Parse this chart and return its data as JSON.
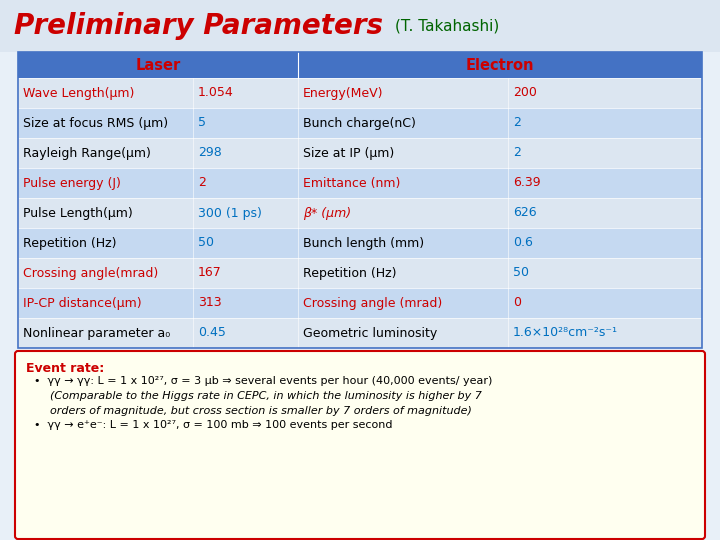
{
  "title": "Preliminary Parameters",
  "subtitle": "(T. Takahashi)",
  "outer_bg": "#e8f0f8",
  "header_bg": "#4472c4",
  "red_text": "#cc0000",
  "blue_text": "#0070c0",
  "green_text": "#006400",
  "black_text": "#000000",
  "row_colors": [
    "#dce6f1",
    "#c5d9f1",
    "#dce6f1",
    "#c5d9f1",
    "#dce6f1",
    "#c5d9f1",
    "#dce6f1",
    "#c5d9f1",
    "#dce6f1"
  ],
  "red_rows": [
    0,
    3,
    6,
    7
  ],
  "table_rows": [
    {
      "col1": "Wave Length(μm)",
      "col2": "1.054",
      "col3": "Energy(MeV)",
      "col4": "200"
    },
    {
      "col1": "Size at focus RMS (μm)",
      "col2": "5",
      "col3": "Bunch charge(nC)",
      "col4": "2"
    },
    {
      "col1": "Rayleigh Range(μm)",
      "col2": "298",
      "col3": "Size at IP (μm)",
      "col4": "2"
    },
    {
      "col1": "Pulse energy (J)",
      "col2": "2",
      "col3": "Emittance (nm)",
      "col4": "6.39"
    },
    {
      "col1": "Pulse Length(μm)",
      "col2": "300 (1 ps)",
      "col3": "β* (μm)",
      "col4": "626"
    },
    {
      "col1": "Repetition (Hz)",
      "col2": "50",
      "col3": "Bunch length (mm)",
      "col4": "0.6"
    },
    {
      "col1": "Crossing angle(mrad)",
      "col2": "167",
      "col3": "Repetition (Hz)",
      "col4": "50"
    },
    {
      "col1": "IP-CP distance(μm)",
      "col2": "313",
      "col3": "Crossing angle (mrad)",
      "col4": "0"
    },
    {
      "col1": "Nonlinear parameter a₀",
      "col2": "0.45",
      "col3": "Geometric luminosity",
      "col4": "1.6×10²⁸cm⁻²s⁻¹"
    }
  ],
  "event_box_bg": "#fffff0",
  "event_box_border": "#cc0000",
  "event_title": "Event rate:",
  "event_line1": "γγ → γγ: L = 1 x 10²⁷, σ = 3 μb ⇒ several events per hour (40,000 events/ year)",
  "event_line2_italic": "(Comparable to the Higgs rate in CEPC, in which the luminosity is higher by 7",
  "event_line3_italic": "orders of magnitude, but cross section is smaller by 7 orders of magnitude)",
  "event_line4": "γγ → e⁺e⁻: L = 1 x 10²⁷, σ = 100 mb ⇒ 100 events per second"
}
